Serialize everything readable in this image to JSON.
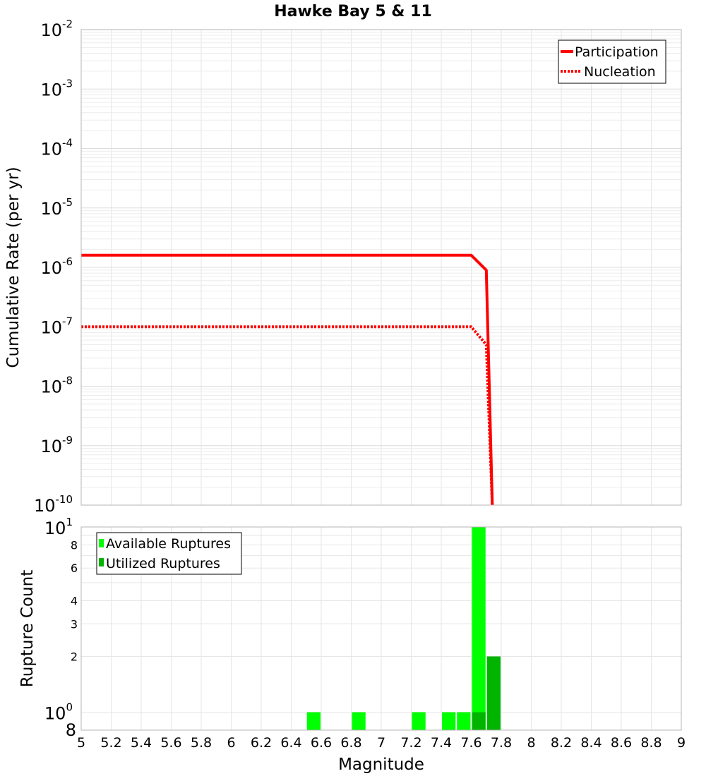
{
  "chart_data": [
    {
      "type": "line",
      "title": "Hawke Bay 5 & 11",
      "ylabel": "Cumulative Rate (per yr)",
      "xlabel": "Magnitude",
      "yscale": "log",
      "xlim": [
        5,
        9
      ],
      "ylim_exponents": [
        -10,
        -2
      ],
      "ytick_base": "10",
      "ytick_exponents": [
        "-2",
        "-3",
        "-4",
        "-5",
        "-6",
        "-7",
        "-8",
        "-9",
        "-10"
      ],
      "legend_position": "top-right",
      "series": [
        {
          "name": "Participation",
          "color": "#ff0000",
          "style": "solid",
          "x": [
            5.0,
            7.6,
            7.7,
            7.74
          ],
          "y": [
            1.6e-06,
            1.6e-06,
            9e-07,
            1e-10
          ]
        },
        {
          "name": "Nucleation",
          "color": "#ff0000",
          "style": "dotted",
          "x": [
            5.0,
            7.6,
            7.7,
            7.74
          ],
          "y": [
            1e-07,
            1e-07,
            5e-08,
            1e-10
          ]
        }
      ]
    },
    {
      "type": "bar",
      "ylabel": "Rupture Count",
      "xlabel": "Magnitude",
      "yscale": "log",
      "ylim": [
        0.8,
        10
      ],
      "xlim": [
        5,
        9
      ],
      "xticks": [
        "5",
        "5.2",
        "5.4",
        "5.6",
        "5.8",
        "6",
        "6.2",
        "6.4",
        "6.6",
        "6.8",
        "7",
        "7.2",
        "7.4",
        "7.6",
        "7.8",
        "8",
        "8.2",
        "8.4",
        "8.6",
        "8.8",
        "9"
      ],
      "ytick_labels": [
        {
          "value": 10,
          "base": "10",
          "exp": "1"
        },
        {
          "value": 8,
          "label": "8"
        },
        {
          "value": 6,
          "label": "6"
        },
        {
          "value": 4,
          "label": "4"
        },
        {
          "value": 3,
          "label": "3"
        },
        {
          "value": 2,
          "label": "2"
        },
        {
          "value": 1,
          "base": "10",
          "exp": "0"
        },
        {
          "value": 0.8,
          "label": "8"
        }
      ],
      "legend_position": "top-left",
      "bin_width": 0.1,
      "series": [
        {
          "name": "Available Ruptures",
          "color": "#00ff00",
          "bins": [
            6.55,
            6.85,
            7.25,
            7.45,
            7.55,
            7.65,
            7.75
          ],
          "values": [
            1,
            1,
            1,
            1,
            1,
            10,
            2
          ]
        },
        {
          "name": "Utilized Ruptures",
          "color": "#00b400",
          "bins": [
            7.65,
            7.75
          ],
          "values": [
            1,
            2
          ]
        }
      ]
    }
  ]
}
